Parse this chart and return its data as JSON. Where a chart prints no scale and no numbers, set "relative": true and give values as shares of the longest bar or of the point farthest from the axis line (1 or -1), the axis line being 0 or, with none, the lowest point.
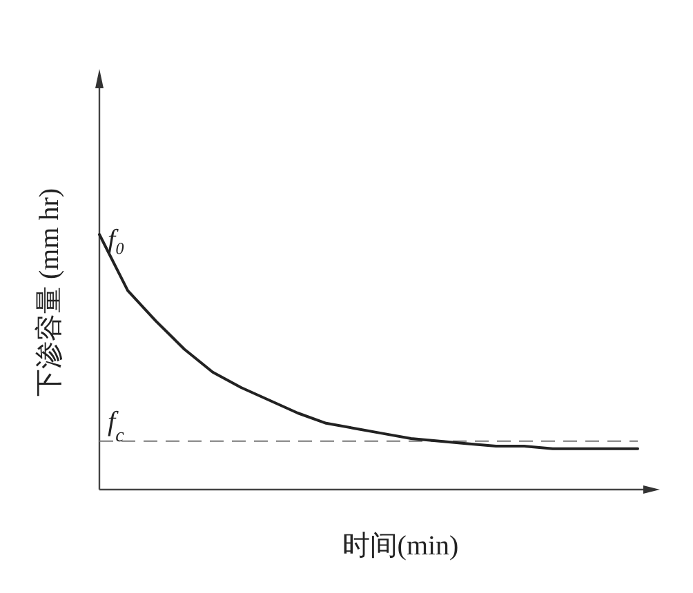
{
  "chart_data": {
    "type": "line",
    "relative": true,
    "xlabel": "时间(min)",
    "ylabel": "下渗容量 (mm hr)",
    "categories": [
      null,
      null,
      null,
      null,
      null,
      null,
      null,
      null,
      null,
      null,
      null,
      null,
      null,
      null,
      null,
      null,
      null,
      null,
      null,
      null
    ],
    "series": [
      {
        "color": "#222222",
        "values": [
          1.0,
          0.78,
          0.66,
          0.55,
          0.46,
          0.4,
          0.35,
          0.3,
          0.26,
          0.24,
          0.22,
          0.2,
          0.19,
          0.18,
          0.17,
          0.17,
          0.16,
          0.16,
          0.16,
          0.16
        ]
      }
    ],
    "ref_lines": [
      {
        "axis": "y",
        "value": 0.19,
        "color": "#777777",
        "line_style": "dashed"
      }
    ],
    "annotations": [
      "f₀",
      {
        "text": "f$_{c}$",
        "y": 0.19
      }
    ],
    "grid": false,
    "marker": "none",
    "line_style": "solid"
  }
}
